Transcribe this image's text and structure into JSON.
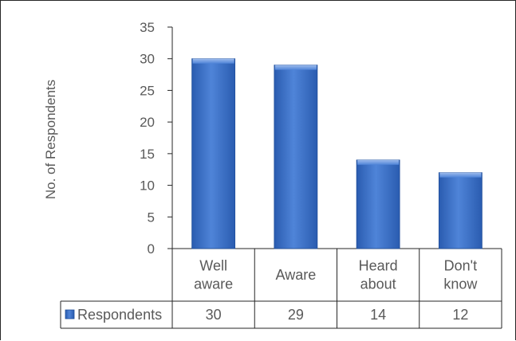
{
  "chart_data": {
    "type": "bar",
    "categories": [
      [
        "Well",
        "aware"
      ],
      [
        "Aware"
      ],
      [
        "Heard",
        "about"
      ],
      [
        "Don't",
        "know"
      ]
    ],
    "series": [
      {
        "name": "Respondents",
        "values": [
          30,
          29,
          14,
          12
        ],
        "color": "#4472C4"
      }
    ],
    "ylabel": "No. of Respondents",
    "xlabel": "",
    "ylim": [
      0,
      35
    ],
    "yticks": [
      0,
      5,
      10,
      15,
      20,
      25,
      30,
      35
    ],
    "grid": false,
    "legend": "data-table",
    "data_table": true,
    "colors": {
      "bar_main": "#3F72C8",
      "bar_dark": "#1F4E9A",
      "bar_light": "#7FA6E6",
      "axis": "#262626",
      "text": "#595959"
    }
  }
}
